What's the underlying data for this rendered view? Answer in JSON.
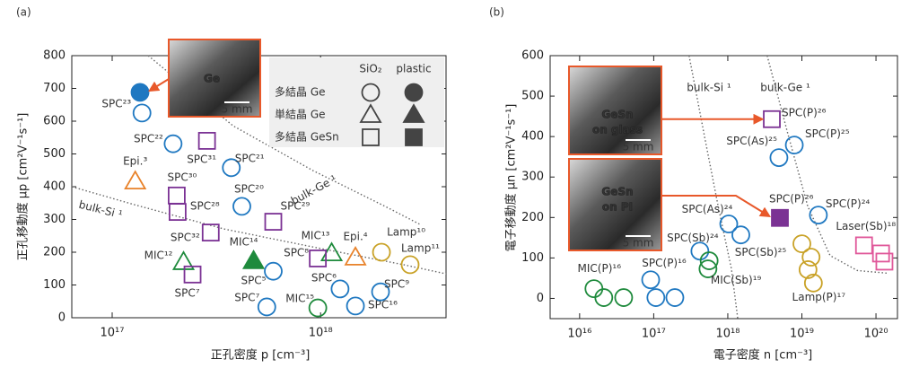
{
  "chart_data": [
    {
      "type": "scatter",
      "panel": "(a)",
      "x_label": "正孔密度 p [cm⁻³]",
      "y_label": "正孔移動度 μp [cm²V⁻¹s⁻¹]",
      "log_x": true,
      "xlim": [
        6.4e+16,
        4e+18
      ],
      "ylim": [
        0,
        800
      ],
      "xticks": [
        {
          "value": 1e+17,
          "label": "10¹⁷"
        },
        {
          "value": 1e+18,
          "label": "10¹⁸"
        }
      ],
      "yticks": [
        0,
        100,
        200,
        300,
        400,
        500,
        600,
        700,
        800
      ],
      "legend": {
        "columns": [
          "SiO₂",
          "plastic"
        ],
        "rows": [
          "多結晶 Ge",
          "単結晶 Ge",
          "多結晶 GeSn"
        ]
      },
      "insets": [
        {
          "caption": [
            "Ge"
          ],
          "scale": "5 mm"
        }
      ],
      "curves": [
        {
          "name": "bulk-Ge ¹",
          "x": [
            1.49e+17,
            3.8e+17,
            9.2e+17,
            2.04e+18,
            3e+18
          ],
          "y": [
            800,
            586,
            449,
            340,
            285
          ]
        },
        {
          "name": "bulk-Si ¹",
          "x": [
            6.4e+16,
            1.28e+17,
            3.44e+17,
            9.2e+17,
            2.5e+18,
            4e+18
          ],
          "y": [
            400,
            345,
            271,
            216,
            162,
            134
          ]
        }
      ],
      "points": [
        {
          "label": null,
          "x": 1.36e+17,
          "y": 688,
          "marker": "circle",
          "filled": true,
          "color": "#1f78c1"
        },
        {
          "label": "SPC²³",
          "x": 1.39e+17,
          "y": 625,
          "marker": "circle",
          "filled": false,
          "color": "#1f78c1"
        },
        {
          "label": "SPC²²",
          "x": 1.96e+17,
          "y": 531,
          "marker": "circle",
          "filled": false,
          "color": "#1f78c1"
        },
        {
          "label": "SPC³¹",
          "x": 2.85e+17,
          "y": 540,
          "marker": "square",
          "filled": false,
          "color": "#7b3294"
        },
        {
          "label": "SPC²¹",
          "x": 3.73e+17,
          "y": 458,
          "marker": "circle",
          "filled": false,
          "color": "#1f78c1"
        },
        {
          "label": "Epi.³",
          "x": 1.29e+17,
          "y": 416,
          "marker": "triangle",
          "filled": false,
          "color": "#e8822a"
        },
        {
          "label": "SPC³⁰",
          "x": 2.04e+17,
          "y": 373,
          "marker": "square",
          "filled": false,
          "color": "#7b3294"
        },
        {
          "label": "SPC²⁰",
          "x": 4.19e+17,
          "y": 340,
          "marker": "circle",
          "filled": false,
          "color": "#1f78c1"
        },
        {
          "label": "SPC²⁸",
          "x": 2.06e+17,
          "y": 323,
          "marker": "square",
          "filled": false,
          "color": "#7b3294"
        },
        {
          "label": "SPC²⁹",
          "x": 5.93e+17,
          "y": 293,
          "marker": "square",
          "filled": false,
          "color": "#7b3294"
        },
        {
          "label": "SPC³²",
          "x": 2.97e+17,
          "y": 260,
          "marker": "square",
          "filled": false,
          "color": "#7b3294"
        },
        {
          "label": "MIC¹²",
          "x": 2.2e+17,
          "y": 170,
          "marker": "triangle",
          "filled": false,
          "color": "#1e8a3c"
        },
        {
          "label": "SPC⁷",
          "x": 2.43e+17,
          "y": 132,
          "marker": "square",
          "filled": false,
          "color": "#7b3294"
        },
        {
          "label": "MIC¹⁴",
          "x": 4.77e+17,
          "y": 173,
          "marker": "triangle",
          "filled": true,
          "color": "#1e8a3c"
        },
        {
          "label": "SPC⁵",
          "x": 5.93e+17,
          "y": 142,
          "marker": "circle",
          "filled": false,
          "color": "#1f78c1"
        },
        {
          "label": "MIC¹³",
          "x": 1.13e+18,
          "y": 197,
          "marker": "triangle",
          "filled": false,
          "color": "#1e8a3c"
        },
        {
          "label": "SPC⁸",
          "x": 9.7e+17,
          "y": 181,
          "marker": "square",
          "filled": false,
          "color": "#7b3294"
        },
        {
          "label": "Epi.⁴",
          "x": 1.47e+18,
          "y": 184,
          "marker": "triangle",
          "filled": false,
          "color": "#e8822a"
        },
        {
          "label": "Lamp¹⁰",
          "x": 1.96e+18,
          "y": 200,
          "marker": "circle",
          "filled": false,
          "color": "#c9a227"
        },
        {
          "label": "Lamp¹¹",
          "x": 2.69e+18,
          "y": 162,
          "marker": "circle",
          "filled": false,
          "color": "#c9a227"
        },
        {
          "label": "SPC⁷",
          "x": 5.52e+17,
          "y": 33,
          "marker": "circle",
          "filled": false,
          "color": "#1f78c1"
        },
        {
          "label": "MIC¹⁵",
          "x": 9.7e+17,
          "y": 30,
          "marker": "circle",
          "filled": false,
          "color": "#1e8a3c"
        },
        {
          "label": "SPC⁶",
          "x": 1.24e+18,
          "y": 88,
          "marker": "circle",
          "filled": false,
          "color": "#1f78c1"
        },
        {
          "label": "SPC¹⁶",
          "x": 1.47e+18,
          "y": 36,
          "marker": "circle",
          "filled": false,
          "color": "#1f78c1"
        },
        {
          "label": "SPC⁹",
          "x": 1.94e+18,
          "y": 79,
          "marker": "circle",
          "filled": false,
          "color": "#1f78c1"
        }
      ]
    },
    {
      "type": "scatter",
      "panel": "(b)",
      "x_label": "電子密度 n [cm⁻³]",
      "y_label": "電子移動度 μn [cm²V⁻¹s⁻¹]",
      "log_x": true,
      "xlim": [
        4000000000000000.0,
        1.95e+20
      ],
      "ylim": [
        -50,
        600
      ],
      "xticks": [
        {
          "value": 1e+16,
          "label": "10¹⁶"
        },
        {
          "value": 1e+17,
          "label": "10¹⁷"
        },
        {
          "value": 1e+18,
          "label": "10¹⁸"
        },
        {
          "value": 1e+19,
          "label": "10¹⁹"
        },
        {
          "value": 1e+20,
          "label": "10²⁰"
        }
      ],
      "yticks": [
        0,
        100,
        200,
        300,
        400,
        500,
        600
      ],
      "insets": [
        {
          "caption": [
            "GeSn",
            "on glass"
          ],
          "scale": "5 mm"
        },
        {
          "caption": [
            "GeSn",
            "on PI"
          ],
          "scale": "5 mm"
        }
      ],
      "curves": [
        {
          "name": "bulk-Si ¹",
          "x": [
            3e+17,
            4.8e+17,
            7.4e+17,
            1.12e+18,
            1.36e+18
          ],
          "y": [
            600,
            405,
            228,
            73,
            -49
          ]
        },
        {
          "name": "bulk-Ge ¹",
          "x": [
            3.4e+18,
            6.5e+18,
            1.2e+19,
            2.4e+19,
            5.6e+19,
            1.48e+20
          ],
          "y": [
            600,
            405,
            228,
            106,
            69,
            62
          ]
        }
      ],
      "points": [
        {
          "label": "SPC(P)²⁶",
          "x": 3.93e+18,
          "y": 443,
          "marker": "square",
          "filled": false,
          "color": "#7b3294"
        },
        {
          "label": "SPC(P)²⁶",
          "x": 5.05e+18,
          "y": 199,
          "marker": "square",
          "filled": true,
          "color": "#7b3294"
        },
        {
          "label": "SPC(As)²⁵",
          "x": 4.9e+18,
          "y": 348,
          "marker": "circle",
          "filled": false,
          "color": "#1f78c1"
        },
        {
          "label": "SPC(P)²⁵",
          "x": 7.9e+18,
          "y": 379,
          "marker": "circle",
          "filled": false,
          "color": "#1f78c1"
        },
        {
          "label": "SPC(P)²⁴",
          "x": 1.67e+19,
          "y": 206,
          "marker": "circle",
          "filled": false,
          "color": "#1f78c1"
        },
        {
          "label": "SPC(As)²⁴",
          "x": 1.03e+18,
          "y": 184,
          "marker": "circle",
          "filled": false,
          "color": "#1f78c1"
        },
        {
          "label": "SPC(Sb)²⁵",
          "x": 1.5e+18,
          "y": 157,
          "marker": "circle",
          "filled": false,
          "color": "#1f78c1"
        },
        {
          "label": "SPC(Sb)²⁴",
          "x": 4.2e+17,
          "y": 117,
          "marker": "circle",
          "filled": false,
          "color": "#1f78c1"
        },
        {
          "label": null,
          "x": 5.6e+17,
          "y": 93,
          "marker": "circle",
          "filled": false,
          "color": "#1e8a3c"
        },
        {
          "label": "MIC(Sb)¹⁹",
          "x": 5.4e+17,
          "y": 73,
          "marker": "circle",
          "filled": false,
          "color": "#1e8a3c"
        },
        {
          "label": "SPC(P)¹⁶",
          "x": 9.1e+16,
          "y": 46,
          "marker": "circle",
          "filled": false,
          "color": "#1f78c1"
        },
        {
          "label": null,
          "x": 1.07e+17,
          "y": 2,
          "marker": "circle",
          "filled": false,
          "color": "#1f78c1"
        },
        {
          "label": null,
          "x": 1.93e+17,
          "y": 2,
          "marker": "circle",
          "filled": false,
          "color": "#1f78c1"
        },
        {
          "label": "MIC(P)¹⁶",
          "x": 1.56e+16,
          "y": 24,
          "marker": "circle",
          "filled": false,
          "color": "#1e8a3c"
        },
        {
          "label": null,
          "x": 2.12e+16,
          "y": 2,
          "marker": "circle",
          "filled": false,
          "color": "#1e8a3c"
        },
        {
          "label": null,
          "x": 3.93e+16,
          "y": 2,
          "marker": "circle",
          "filled": false,
          "color": "#1e8a3c"
        },
        {
          "label": null,
          "x": 1e+19,
          "y": 135,
          "marker": "circle",
          "filled": false,
          "color": "#c9a227"
        },
        {
          "label": null,
          "x": 1.33e+19,
          "y": 102,
          "marker": "circle",
          "filled": false,
          "color": "#c9a227"
        },
        {
          "label": null,
          "x": 1.21e+19,
          "y": 71,
          "marker": "circle",
          "filled": false,
          "color": "#c9a227"
        },
        {
          "label": "Lamp(P)¹⁷",
          "x": 1.43e+19,
          "y": 38,
          "marker": "circle",
          "filled": false,
          "color": "#c9a227"
        },
        {
          "label": "Laser(Sb)¹⁸",
          "x": 6.9e+19,
          "y": 131,
          "marker": "square",
          "filled": false,
          "color": "#e0589a"
        },
        {
          "label": null,
          "x": 1.17e+20,
          "y": 111,
          "marker": "square",
          "filled": false,
          "color": "#e0589a"
        },
        {
          "label": null,
          "x": 1.3e+20,
          "y": 91,
          "marker": "square",
          "filled": false,
          "color": "#e0589a"
        }
      ]
    }
  ]
}
